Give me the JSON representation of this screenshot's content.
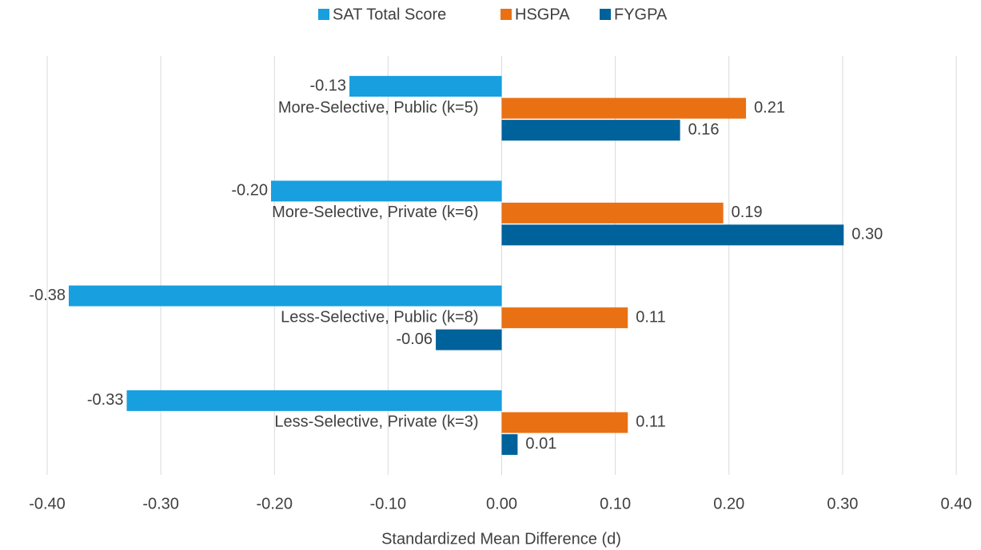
{
  "chart_data": {
    "type": "hbar",
    "categories": [
      "More-Selective, Public (k=5)",
      "More-Selective, Private (k=6)",
      "Less-Selective, Public (k=8)",
      "Less-Selective, Private (k=3)"
    ],
    "series": [
      {
        "name": "SAT Total Score",
        "color": "#179fe0",
        "values": [
          -0.134,
          -0.203,
          -0.381,
          -0.33
        ],
        "value_labels": [
          "-0.13",
          "-0.20",
          "-0.38",
          "-0.33"
        ]
      },
      {
        "name": "HSGPA",
        "color": "#e97113",
        "values": [
          0.215,
          0.195,
          0.111,
          0.111
        ],
        "value_labels": [
          "0.21",
          "0.19",
          "0.11",
          "0.11"
        ]
      },
      {
        "name": "FYGPA",
        "color": "#00629b",
        "values": [
          0.157,
          0.301,
          -0.058,
          0.014
        ],
        "value_labels": [
          "0.16",
          "0.30",
          "-0.06",
          "0.01"
        ]
      }
    ],
    "x_label": "Standardized Mean Difference (d)",
    "xlim": [
      -0.4,
      0.4
    ],
    "xticks": [
      {
        "value": -0.4,
        "label": "-0.40"
      },
      {
        "value": -0.3,
        "label": "-0.30"
      },
      {
        "value": -0.2,
        "label": "-0.20"
      },
      {
        "value": -0.1,
        "label": "-0.10"
      },
      {
        "value": 0,
        "label": "0.00"
      },
      {
        "value": 0.1,
        "label": "0.10"
      },
      {
        "value": 0.2,
        "label": "0.20"
      },
      {
        "value": 0.3,
        "label": "0.30"
      },
      {
        "value": 0.4,
        "label": "0.40"
      }
    ],
    "grid": true,
    "legend": "top"
  }
}
